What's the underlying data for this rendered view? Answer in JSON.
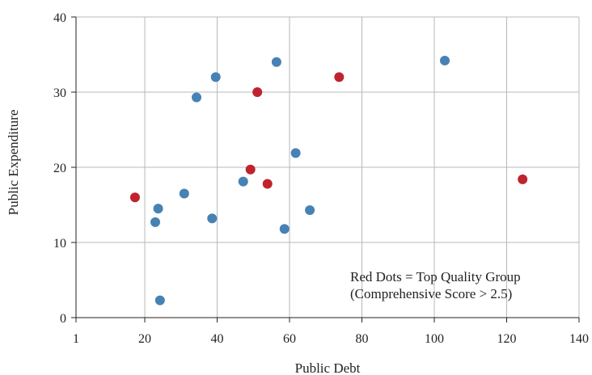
{
  "chart_data": {
    "type": "scatter",
    "title": "",
    "xlabel": "Public Debt",
    "ylabel": "Public Expenditure",
    "xlim": [
      1,
      140
    ],
    "ylim": [
      0,
      40
    ],
    "x_ticks": [
      1,
      20,
      40,
      60,
      80,
      100,
      120,
      140
    ],
    "y_ticks": [
      0,
      10,
      20,
      30,
      40
    ],
    "grid": true,
    "colors": {
      "other": "#4682b4",
      "top_quality": "#c0222e",
      "grid": "#b8b8b8"
    },
    "annotation": {
      "line1": "Red Dots = Top Quality Group",
      "line2": "(Comprehensive Score > 2.5)"
    },
    "series": [
      {
        "group": "other",
        "color": "#4682b4",
        "points": [
          {
            "x": 23.7,
            "y": 14.5
          },
          {
            "x": 22.9,
            "y": 12.7
          },
          {
            "x": 24.2,
            "y": 2.3
          },
          {
            "x": 30.9,
            "y": 16.5
          },
          {
            "x": 34.3,
            "y": 29.3
          },
          {
            "x": 38.6,
            "y": 13.2
          },
          {
            "x": 39.6,
            "y": 32.0
          },
          {
            "x": 47.2,
            "y": 18.1
          },
          {
            "x": 56.4,
            "y": 34.0
          },
          {
            "x": 58.6,
            "y": 11.8
          },
          {
            "x": 61.7,
            "y": 21.9
          },
          {
            "x": 65.6,
            "y": 14.3
          },
          {
            "x": 102.9,
            "y": 34.2
          }
        ]
      },
      {
        "group": "top_quality",
        "color": "#c0222e",
        "points": [
          {
            "x": 17.3,
            "y": 16.0
          },
          {
            "x": 49.2,
            "y": 19.7
          },
          {
            "x": 51.1,
            "y": 30.0
          },
          {
            "x": 53.9,
            "y": 17.8
          },
          {
            "x": 73.7,
            "y": 32.0
          },
          {
            "x": 124.4,
            "y": 18.4
          }
        ]
      }
    ]
  }
}
